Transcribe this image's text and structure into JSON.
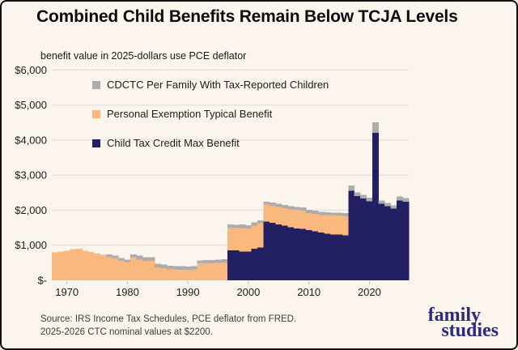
{
  "title": "Combined Child Benefits Remain Below TCJA Levels",
  "subtitle": "benefit value in 2025-dollars use PCE deflator",
  "source": {
    "line1": "Source: IRS Income Tax Schedules, PCE deflator from FRED.",
    "line2": "2025-2026 CTC nominal values at $2200."
  },
  "brand": {
    "line1": "family",
    "line2": "studies",
    "color": "#2B2A7E"
  },
  "colors": {
    "background": "#FCF5EE",
    "grid": "#E7E1DE",
    "axis_text": "#1C1C1C",
    "tick_mark": "#C8BEB6",
    "navy": "#221F63",
    "orange": "#F9B87D",
    "gray": "#ACACAC"
  },
  "chart_data": {
    "type": "bar",
    "stacked": true,
    "title": "Combined Child Benefits Remain Below TCJA Levels",
    "subtitle": "benefit value in 2025-dollars use PCE deflator",
    "xlabel": "",
    "ylabel": "benefit value in 2025 dollars",
    "ylim": [
      0,
      6000
    ],
    "grid": true,
    "legend_position": "top-left inside plot",
    "x": [
      1968,
      1969,
      1970,
      1971,
      1972,
      1973,
      1974,
      1975,
      1976,
      1977,
      1978,
      1979,
      1980,
      1981,
      1982,
      1983,
      1984,
      1985,
      1986,
      1987,
      1988,
      1989,
      1990,
      1991,
      1992,
      1993,
      1994,
      1995,
      1996,
      1997,
      1998,
      1999,
      2000,
      2001,
      2002,
      2003,
      2004,
      2005,
      2006,
      2007,
      2008,
      2009,
      2010,
      2011,
      2012,
      2013,
      2014,
      2015,
      2016,
      2017,
      2018,
      2019,
      2020,
      2021,
      2022,
      2023,
      2024,
      2025,
      2026
    ],
    "x_ticks": [
      1970,
      1980,
      1990,
      2000,
      2010,
      2020
    ],
    "y_ticks": {
      "labels": [
        "$6,000",
        "$5,000",
        "$4,000",
        "$3,000",
        "$2,000",
        "$1,000",
        "$-"
      ],
      "values": [
        6000,
        5000,
        4000,
        3000,
        2000,
        1000,
        0
      ]
    },
    "series": [
      {
        "name": "Child Tax Credit Max Benefit",
        "color": "#221F63",
        "values": [
          0,
          0,
          0,
          0,
          0,
          0,
          0,
          0,
          0,
          0,
          0,
          0,
          0,
          0,
          0,
          0,
          0,
          0,
          0,
          0,
          0,
          0,
          0,
          0,
          0,
          0,
          0,
          0,
          0,
          860,
          860,
          825,
          825,
          900,
          940,
          1670,
          1635,
          1595,
          1555,
          1515,
          1480,
          1465,
          1438,
          1400,
          1362,
          1323,
          1310,
          1300,
          1285,
          2550,
          2400,
          2330,
          2250,
          4210,
          2180,
          2110,
          2050,
          2280,
          2240
        ]
      },
      {
        "name": "Personal Exemption Typical Benefit",
        "color": "#F9B87D",
        "values": [
          800,
          825,
          845,
          885,
          905,
          840,
          805,
          760,
          730,
          655,
          630,
          555,
          515,
          655,
          590,
          555,
          555,
          365,
          350,
          320,
          310,
          305,
          300,
          310,
          480,
          485,
          490,
          495,
          510,
          645,
          640,
          665,
          650,
          655,
          690,
          490,
          495,
          500,
          505,
          510,
          530,
          525,
          485,
          500,
          500,
          539,
          545,
          545,
          540,
          0,
          0,
          0,
          0,
          0,
          0,
          0,
          0,
          0,
          0
        ]
      },
      {
        "name": "CDCTC Per Family With Tax-Reported Children",
        "color": "#ACACAC",
        "values": [
          0,
          0,
          0,
          0,
          0,
          0,
          0,
          0,
          0,
          80,
          80,
          75,
          75,
          90,
          115,
          100,
          100,
          110,
          105,
          100,
          95,
          95,
          95,
          100,
          90,
          90,
          90,
          90,
          90,
          85,
          85,
          100,
          95,
          95,
          80,
          85,
          85,
          85,
          85,
          85,
          85,
          85,
          92,
          90,
          93,
          77,
          80,
          80,
          90,
          150,
          110,
          105,
          105,
          290,
          100,
          95,
          90,
          110,
          105
        ]
      }
    ],
    "legend": [
      {
        "label": "CDCTC Per Family With Tax-Reported Children",
        "color": "#ACACAC"
      },
      {
        "label": "Personal Exemption Typical Benefit",
        "color": "#F9B87D"
      },
      {
        "label": "Child Tax Credit Max Benefit",
        "color": "#221F63"
      }
    ]
  }
}
